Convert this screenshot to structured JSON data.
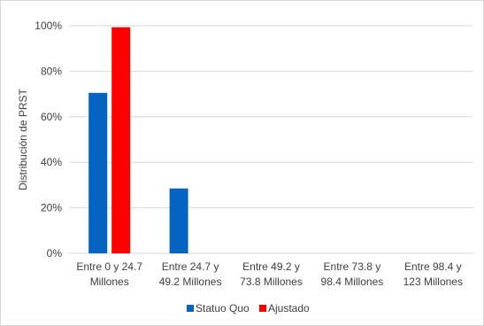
{
  "chart_data": {
    "type": "bar",
    "title": "",
    "xlabel": "",
    "ylabel": "Distribución de PRST",
    "ylim": [
      0,
      100
    ],
    "yticks": [
      "0%",
      "20%",
      "40%",
      "60%",
      "80%",
      "100%"
    ],
    "grid": true,
    "legend_position": "bottom",
    "categories": [
      [
        "Entre 0 y 24.7",
        "Millones"
      ],
      [
        "Entre 24.7 y",
        "49.2 Millones"
      ],
      [
        "Entre 49.2 y",
        "73.8 Millones"
      ],
      [
        "Entre 73.8 y",
        "98.4 Millones"
      ],
      [
        "Entre 98.4 y",
        "123 Millones"
      ]
    ],
    "series": [
      {
        "name": "Statuo Quo",
        "color": "#0563C1",
        "values": [
          70.5,
          28.5,
          0,
          0,
          0
        ]
      },
      {
        "name": "Ajustado",
        "color": "#FF0000",
        "values": [
          99.3,
          0,
          0,
          0,
          0
        ]
      }
    ]
  }
}
